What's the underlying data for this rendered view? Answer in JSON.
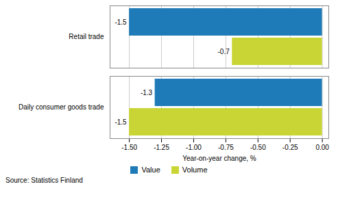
{
  "chart_data": {
    "type": "bar",
    "orientation": "horizontal",
    "categories": [
      "Daily consumer goods trade",
      "Retail trade"
    ],
    "series": [
      {
        "name": "Value",
        "color": "#1F7BB8",
        "values": [
          -1.3,
          -1.5
        ]
      },
      {
        "name": "Volume",
        "color": "#C8D535",
        "values": [
          -1.5,
          -0.7
        ]
      }
    ],
    "xlabel": "Year-on-year change, %",
    "xlim": [
      -1.65,
      0.05
    ],
    "xticks": [
      {
        "value": -1.5,
        "label": "-1.50"
      },
      -1.25,
      {
        "value": -1.0,
        "label": "-1.00"
      },
      -0.75,
      {
        "value": -0.5,
        "label": "-0.50"
      },
      -0.25,
      {
        "value": 0.0,
        "label": "0.00"
      }
    ],
    "grid": true,
    "data_labels": true,
    "legend": "bottom",
    "annotations": [
      "Source: Statistics Finland"
    ]
  }
}
